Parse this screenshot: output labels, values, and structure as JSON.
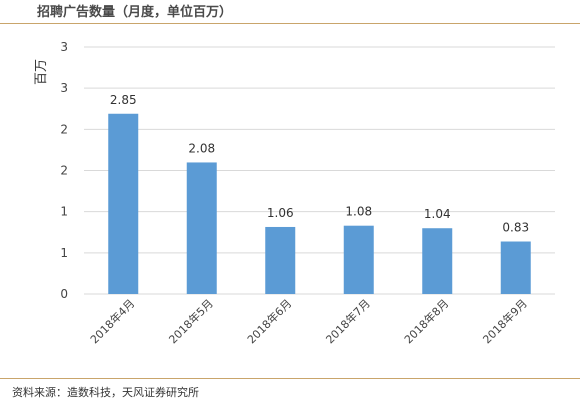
{
  "chart_data": {
    "type": "bar",
    "title": "招聘广告数量（月度，单位百万）",
    "ylabel": "百万",
    "xlabel": "",
    "categories": [
      "2018年4月",
      "2018年5月",
      "2018年6月",
      "2018年7月",
      "2018年8月",
      "2018年9月"
    ],
    "values": [
      2.85,
      2.08,
      1.06,
      1.08,
      1.04,
      0.83
    ],
    "data_labels": [
      "2.85",
      "2.08",
      "1.06",
      "1.08",
      "1.04",
      "0.83"
    ],
    "y_tick_labels": [
      "0",
      "1",
      "1",
      "2",
      "2",
      "3",
      "3"
    ],
    "ylim": [
      0,
      3
    ],
    "grid": true,
    "bar_color": "#5b9bd5",
    "grid_color": "#d9d9d9"
  },
  "source": "资料来源：造数科技，天风证券研究所"
}
